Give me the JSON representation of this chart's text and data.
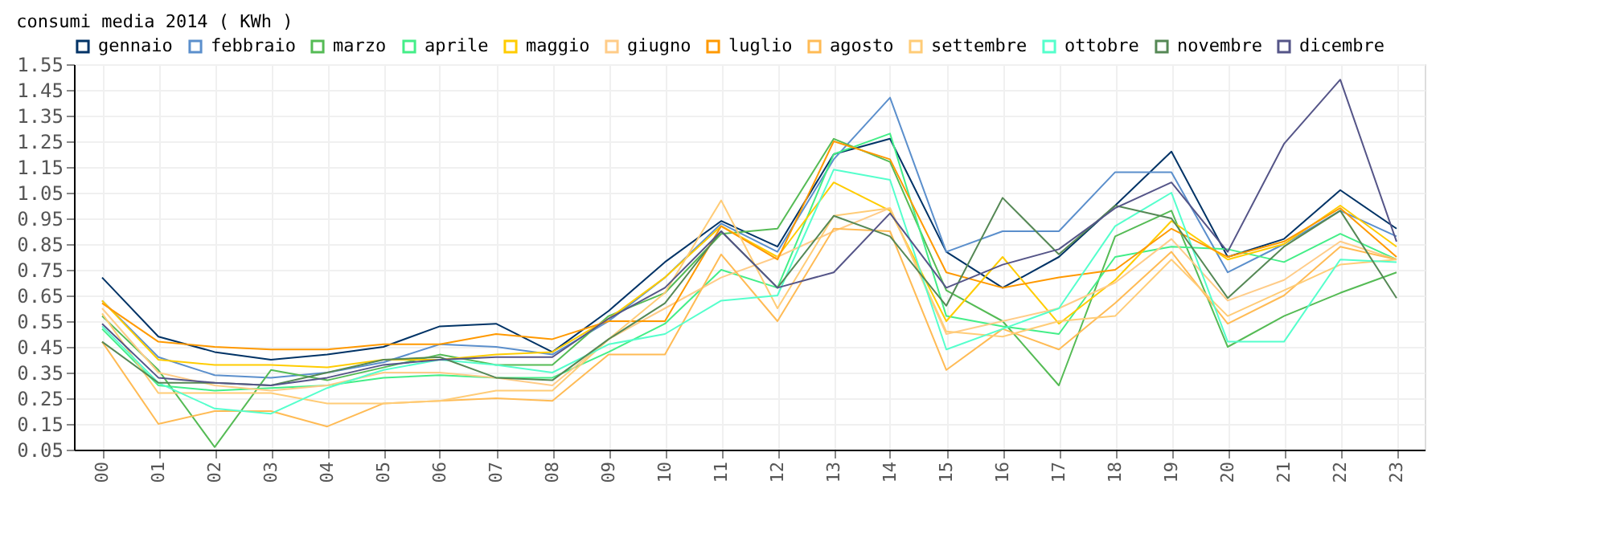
{
  "chart_data": {
    "type": "line",
    "title": "consumi media 2014 ( KWh )",
    "categories": [
      "00",
      "01",
      "02",
      "03",
      "04",
      "05",
      "06",
      "07",
      "08",
      "09",
      "10",
      "11",
      "12",
      "13",
      "14",
      "15",
      "16",
      "17",
      "18",
      "19",
      "20",
      "21",
      "22",
      "23"
    ],
    "ylim": [
      0.05,
      1.55
    ],
    "yticks": [
      0.05,
      0.15,
      0.25,
      0.35,
      0.45,
      0.55,
      0.65,
      0.75,
      0.85,
      0.95,
      1.05,
      1.15,
      1.25,
      1.35,
      1.45,
      1.55
    ],
    "grid": true,
    "legend": "top",
    "marker": "none",
    "line_style": "solid",
    "series": [
      {
        "name": "gennaio",
        "color": "#003366",
        "values": [
          0.72,
          0.49,
          0.43,
          0.4,
          0.42,
          0.45,
          0.53,
          0.54,
          0.43,
          0.59,
          0.78,
          0.94,
          0.84,
          1.2,
          1.26,
          0.82,
          0.68,
          0.8,
          1.0,
          1.21,
          0.8,
          0.87,
          1.06,
          0.91
        ]
      },
      {
        "name": "febbraio",
        "color": "#5b8fcc",
        "values": [
          0.63,
          0.41,
          0.34,
          0.33,
          0.35,
          0.39,
          0.46,
          0.45,
          0.42,
          0.55,
          0.72,
          0.93,
          0.82,
          1.18,
          1.42,
          0.82,
          0.9,
          0.9,
          1.13,
          1.13,
          0.74,
          0.85,
          0.98,
          0.88
        ]
      },
      {
        "name": "marzo",
        "color": "#55bb55",
        "values": [
          0.57,
          0.36,
          0.06,
          0.36,
          0.32,
          0.37,
          0.42,
          0.38,
          0.38,
          0.57,
          0.66,
          0.89,
          0.91,
          1.26,
          1.17,
          0.67,
          0.55,
          0.3,
          0.88,
          0.98,
          0.45,
          0.57,
          0.66,
          0.74
        ]
      },
      {
        "name": "aprile",
        "color": "#44ee88",
        "values": [
          0.52,
          0.3,
          0.28,
          0.29,
          0.3,
          0.33,
          0.34,
          0.33,
          0.33,
          0.43,
          0.54,
          0.75,
          0.68,
          1.2,
          1.28,
          0.57,
          0.53,
          0.5,
          0.8,
          0.84,
          0.83,
          0.78,
          0.89,
          0.79
        ]
      },
      {
        "name": "maggio",
        "color": "#ffcc00",
        "values": [
          0.63,
          0.4,
          0.38,
          0.38,
          0.37,
          0.4,
          0.4,
          0.42,
          0.43,
          0.56,
          0.72,
          0.92,
          0.8,
          1.09,
          0.98,
          0.55,
          0.8,
          0.54,
          0.71,
          0.94,
          0.79,
          0.85,
          1.0,
          0.84
        ]
      },
      {
        "name": "giugno",
        "color": "#ffcc88",
        "values": [
          0.6,
          0.35,
          0.3,
          0.28,
          0.3,
          0.35,
          0.35,
          0.33,
          0.3,
          0.48,
          0.6,
          0.72,
          0.8,
          0.9,
          0.99,
          0.5,
          0.55,
          0.6,
          0.7,
          0.87,
          0.63,
          0.71,
          0.86,
          0.79
        ]
      },
      {
        "name": "luglio",
        "color": "#ff9900",
        "values": [
          0.62,
          0.47,
          0.45,
          0.44,
          0.44,
          0.46,
          0.46,
          0.5,
          0.48,
          0.55,
          0.55,
          0.92,
          0.79,
          1.25,
          1.18,
          0.74,
          0.68,
          0.72,
          0.75,
          0.91,
          0.8,
          0.86,
          0.99,
          0.8
        ]
      },
      {
        "name": "agosto",
        "color": "#ffbb55",
        "values": [
          0.47,
          0.15,
          0.2,
          0.2,
          0.14,
          0.23,
          0.24,
          0.25,
          0.24,
          0.42,
          0.42,
          0.81,
          0.55,
          0.91,
          0.9,
          0.36,
          0.52,
          0.44,
          0.62,
          0.82,
          0.54,
          0.65,
          0.84,
          0.79
        ]
      },
      {
        "name": "settembre",
        "color": "#ffcc77",
        "values": [
          0.58,
          0.27,
          0.27,
          0.27,
          0.23,
          0.23,
          0.24,
          0.28,
          0.28,
          0.48,
          0.66,
          1.02,
          0.6,
          0.96,
          0.99,
          0.51,
          0.49,
          0.55,
          0.57,
          0.79,
          0.57,
          0.67,
          0.77,
          0.79
        ]
      },
      {
        "name": "ottobre",
        "color": "#55ffcc",
        "values": [
          0.53,
          0.31,
          0.21,
          0.19,
          0.29,
          0.36,
          0.4,
          0.38,
          0.35,
          0.46,
          0.5,
          0.63,
          0.65,
          1.14,
          1.1,
          0.44,
          0.52,
          0.6,
          0.92,
          1.05,
          0.47,
          0.47,
          0.79,
          0.78
        ]
      },
      {
        "name": "novembre",
        "color": "#558855",
        "values": [
          0.47,
          0.31,
          0.31,
          0.3,
          0.35,
          0.4,
          0.41,
          0.33,
          0.32,
          0.48,
          0.62,
          0.9,
          0.68,
          0.96,
          0.88,
          0.61,
          1.03,
          0.81,
          1.0,
          0.95,
          0.64,
          0.84,
          0.98,
          0.64
        ]
      },
      {
        "name": "dicembre",
        "color": "#555588",
        "values": [
          0.54,
          0.33,
          0.31,
          0.3,
          0.33,
          0.38,
          0.4,
          0.41,
          0.41,
          0.56,
          0.68,
          0.9,
          0.68,
          0.74,
          0.97,
          0.68,
          0.77,
          0.83,
          0.99,
          1.09,
          0.82,
          1.24,
          1.49,
          0.86
        ]
      }
    ]
  }
}
